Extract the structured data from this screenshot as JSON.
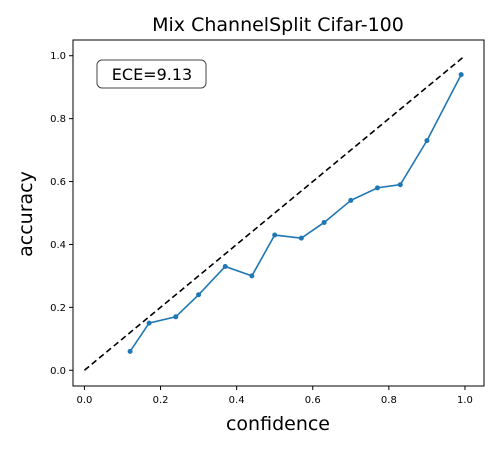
{
  "chart_data": {
    "type": "line",
    "title": "Mix ChannelSplit Cifar-100",
    "xlabel": "confidence",
    "ylabel": "accuracy",
    "annotation": "ECE=9.13",
    "xlim": [
      -0.03,
      1.05
    ],
    "ylim": [
      -0.05,
      1.05
    ],
    "xticks": [
      0.0,
      0.2,
      0.4,
      0.6,
      0.8,
      1.0
    ],
    "yticks": [
      0.0,
      0.2,
      0.4,
      0.6,
      0.8,
      1.0
    ],
    "xtick_labels": [
      "0.0",
      "0.2",
      "0.4",
      "0.6",
      "0.8",
      "1.0"
    ],
    "ytick_labels": [
      "0.0",
      "0.2",
      "0.4",
      "0.6",
      "0.8",
      "1.0"
    ],
    "grid": false,
    "series": [
      {
        "color": "#1f77b4",
        "style": "solid-with-markers",
        "x": [
          0.12,
          0.17,
          0.24,
          0.3,
          0.37,
          0.44,
          0.5,
          0.57,
          0.63,
          0.7,
          0.77,
          0.83,
          0.9,
          0.99
        ],
        "y": [
          0.06,
          0.15,
          0.17,
          0.24,
          0.33,
          0.3,
          0.43,
          0.42,
          0.47,
          0.54,
          0.58,
          0.59,
          0.73,
          0.94
        ]
      },
      {
        "color": "#000000",
        "style": "dashed",
        "x": [
          0.0,
          1.0
        ],
        "y": [
          0.0,
          1.0
        ]
      }
    ]
  }
}
